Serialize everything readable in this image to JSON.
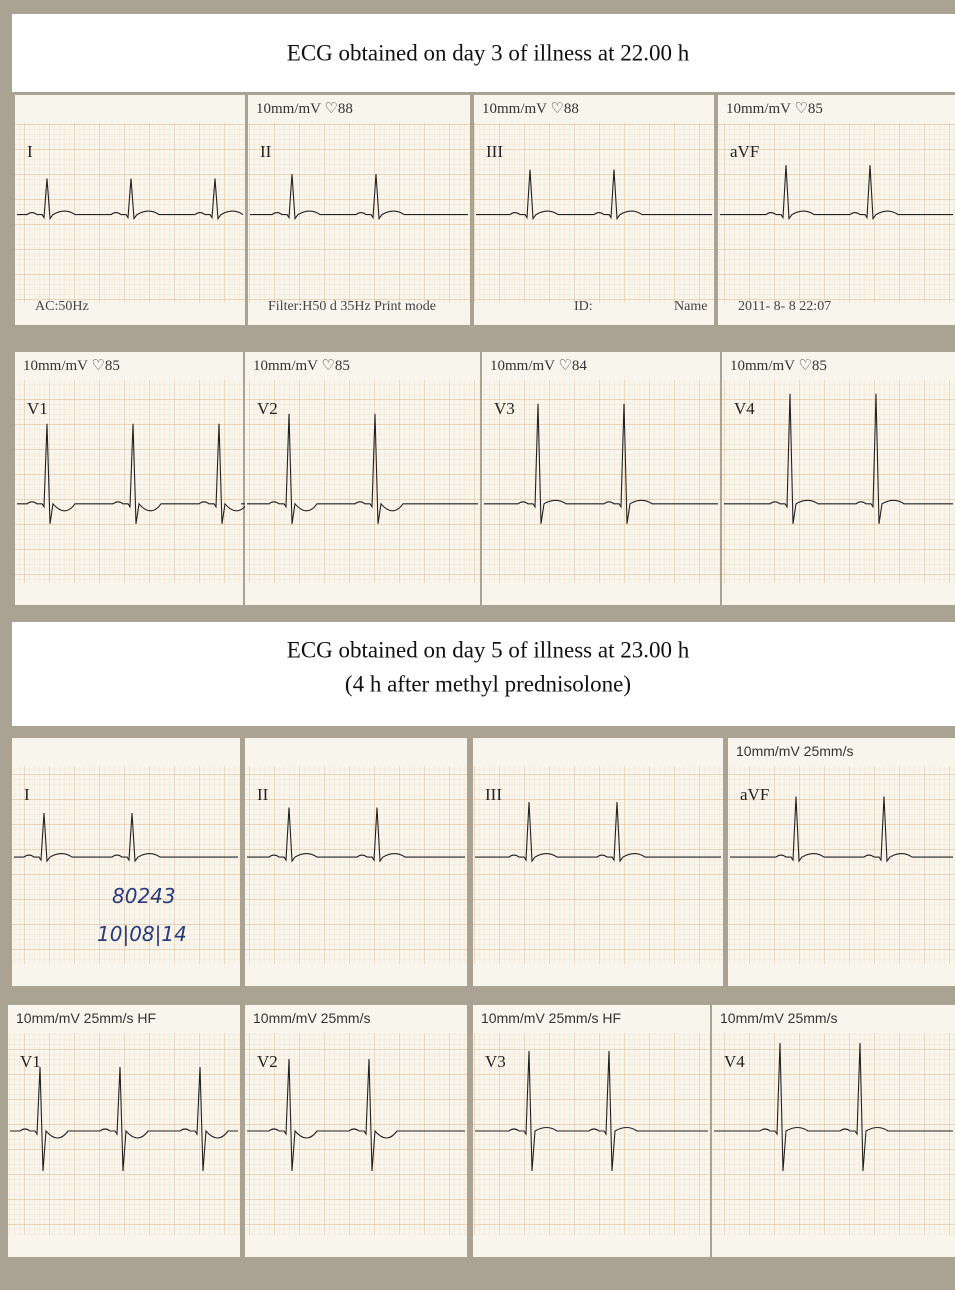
{
  "captions": [
    "ECG obtained on day 3 of illness at 22.00 h",
    "ECG obtained on day 5 of illness at 23.00 h",
    "(4 h after methyl prednisolone)"
  ],
  "rows": [
    {
      "strips": [
        {
          "header": "",
          "lead": "I",
          "notes": [
            "AC:50Hz"
          ]
        },
        {
          "header": "10mm/mV ♡88",
          "lead": "II",
          "notes": [
            "Filter:H50 d 35Hz Print mode"
          ]
        },
        {
          "header": "10mm/mV ♡88",
          "lead": "III",
          "notes": [
            "ID:",
            "Name"
          ]
        },
        {
          "header": "10mm/mV ♡85",
          "lead": "aVF",
          "notes": [
            "2011- 8- 8 22:07"
          ]
        }
      ]
    },
    {
      "strips": [
        {
          "header": "10mm/mV ♡85",
          "lead": "V1",
          "notes": []
        },
        {
          "header": "10mm/mV ♡85",
          "lead": "V2",
          "notes": []
        },
        {
          "header": "10mm/mV ♡84",
          "lead": "V3",
          "notes": []
        },
        {
          "header": "10mm/mV ♡85",
          "lead": "V4",
          "notes": []
        }
      ]
    },
    {
      "strips": [
        {
          "header": "",
          "lead": "I",
          "notes": [
            "80243",
            "10|08|14"
          ]
        },
        {
          "header": "",
          "lead": "II",
          "notes": []
        },
        {
          "header": "",
          "lead": "III",
          "notes": []
        },
        {
          "header": "10mm/mV 25mm/s",
          "lead": "aVF",
          "notes": []
        }
      ]
    },
    {
      "strips": [
        {
          "header": "10mm/mV 25mm/s HF",
          "lead": "V1",
          "notes": []
        },
        {
          "header": "10mm/mV 25mm/s",
          "lead": "V2",
          "notes": []
        },
        {
          "header": "10mm/mV 25mm/s HF",
          "lead": "V3",
          "notes": []
        },
        {
          "header": "10mm/mV 25mm/s",
          "lead": "V4",
          "notes": []
        }
      ]
    }
  ]
}
